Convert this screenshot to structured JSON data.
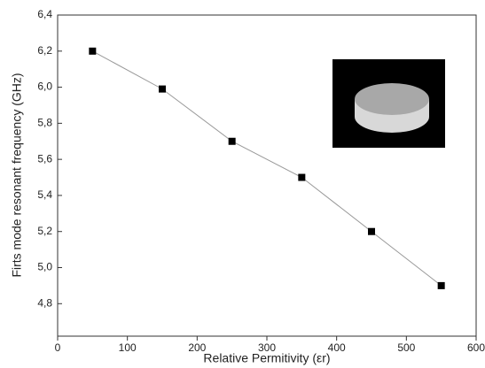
{
  "chart_data": {
    "type": "line",
    "x_label": "Relative Permitivity (εr)",
    "y_label": "Firts mode resonant frequency (GHz)",
    "x": [
      50,
      150,
      250,
      350,
      450,
      550
    ],
    "series": [
      {
        "color": "#999999",
        "marker_color": "#000000",
        "values": [
          6.2,
          5.99,
          5.7,
          5.5,
          5.2,
          4.9
        ]
      }
    ],
    "xlim": [
      0,
      600
    ],
    "xticks": [
      0,
      100,
      200,
      300,
      400,
      500,
      600
    ],
    "ylim": [
      4.62,
      6.4
    ],
    "yticks": [
      {
        "value": 4.8,
        "label": "4,8"
      },
      {
        "value": 5.0,
        "label": "5,0"
      },
      {
        "value": 5.2,
        "label": "5,2"
      },
      {
        "value": 5.4,
        "label": "5,4"
      },
      {
        "value": 5.6,
        "label": "5,6"
      },
      {
        "value": 5.8,
        "label": "5,8"
      },
      {
        "value": 6.0,
        "label": "6,0"
      },
      {
        "value": 6.2,
        "label": "6,2"
      },
      {
        "value": 6.4,
        "label": "6,4"
      }
    ],
    "grid": false
  }
}
